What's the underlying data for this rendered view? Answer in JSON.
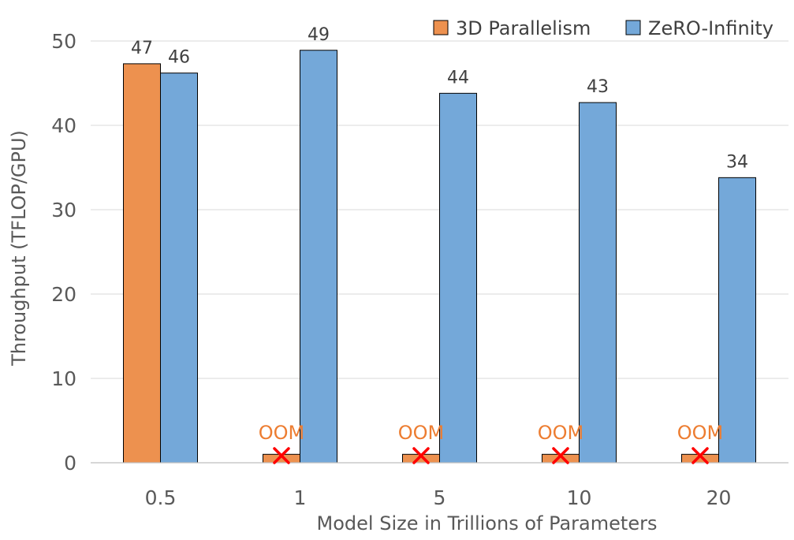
{
  "chart_data": {
    "type": "bar",
    "categories": [
      "0.5",
      "1",
      "5",
      "10",
      "20"
    ],
    "series": [
      {
        "name": "3D Parallelism",
        "values": [
          47.3,
          null,
          null,
          null,
          null
        ],
        "color": "#ED914F",
        "oom": [
          false,
          true,
          true,
          true,
          true
        ]
      },
      {
        "name": "ZeRO-Infinity",
        "values": [
          46.2,
          48.9,
          43.8,
          42.7,
          33.8
        ],
        "color": "#74A8D9"
      }
    ],
    "data_labels": [
      [
        "47",
        "OOM",
        "OOM",
        "OOM",
        "OOM"
      ],
      [
        "46",
        "49",
        "44",
        "43",
        "34"
      ]
    ],
    "oom_stub_value": 1,
    "oom_color": "#ED7D31",
    "marker_color": "#FF0000",
    "xlabel": "Model Size in Trillions of Parameters",
    "ylabel": "Throughput (TFLOP/GPU)",
    "ylim": [
      0,
      50
    ],
    "yticks": [
      0,
      10,
      20,
      30,
      40,
      50
    ],
    "grid": true,
    "legend_position": "top-right"
  }
}
